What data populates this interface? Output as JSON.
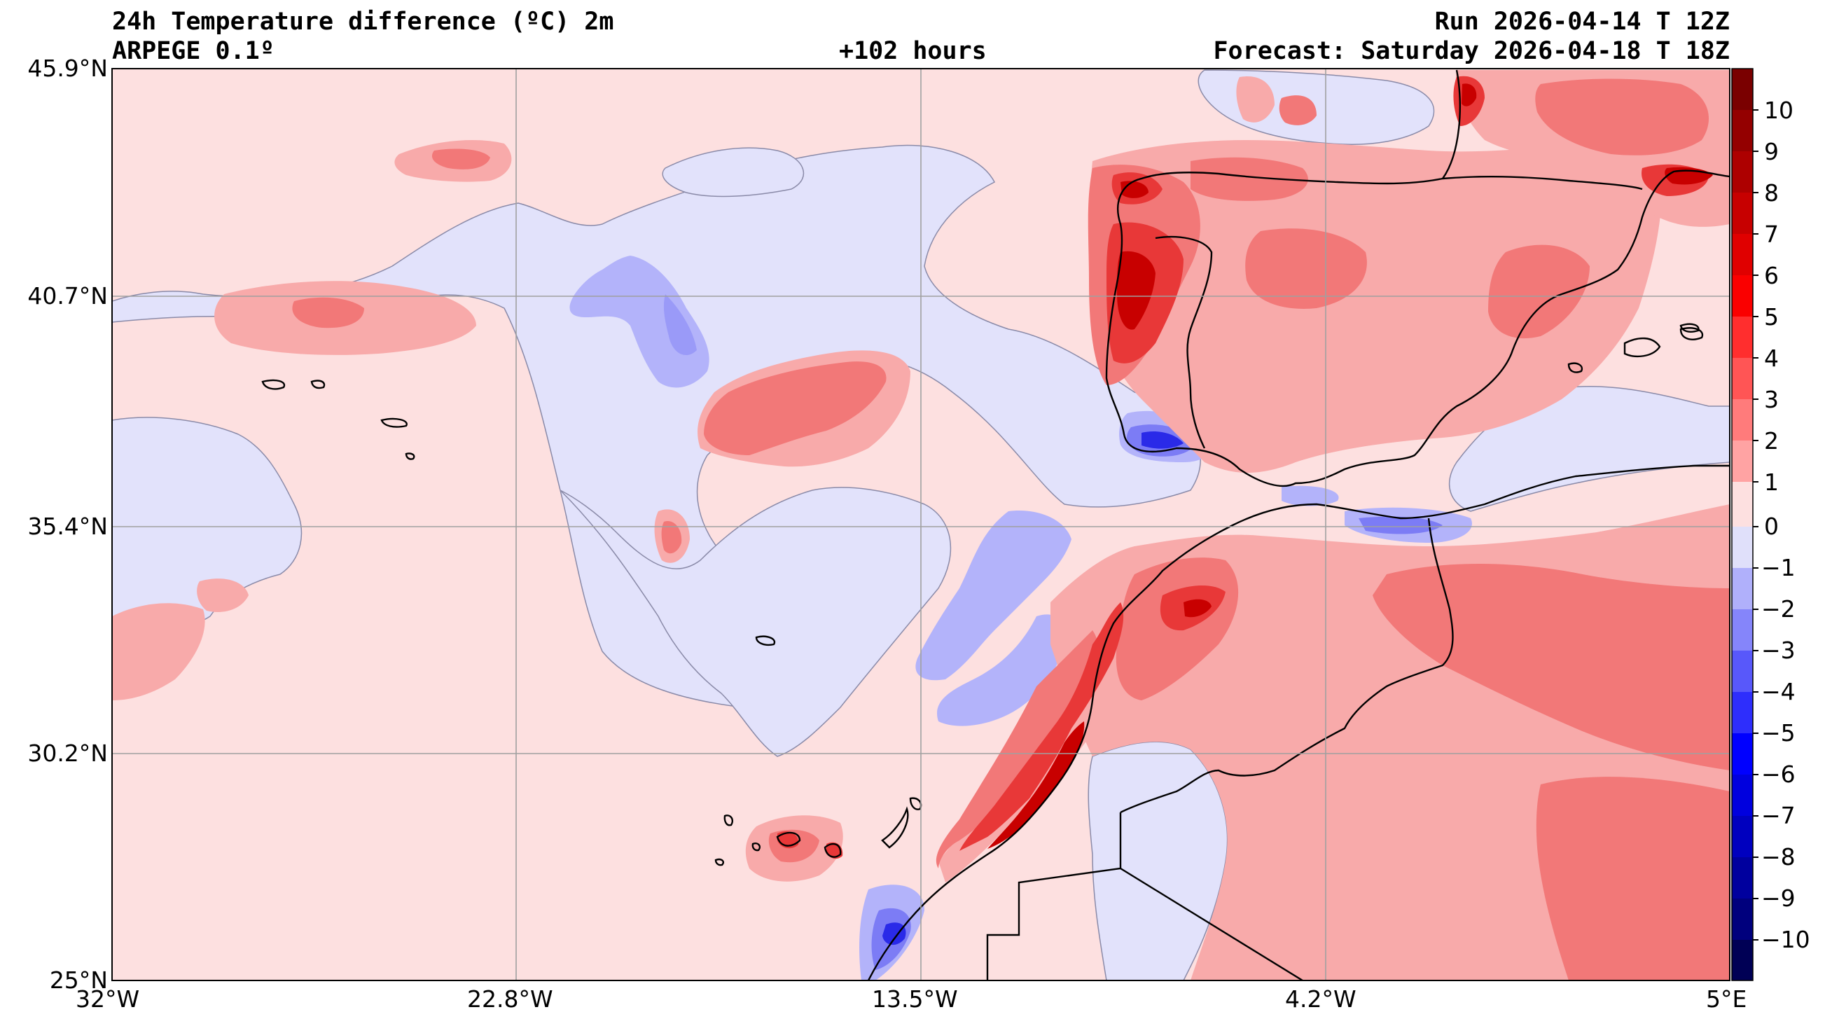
{
  "header": {
    "title": "24h Temperature difference (ºC) 2m",
    "model": "ARPEGE 0.1º",
    "lead_time": "+102 hours",
    "run": "Run 2026-04-14 T 12Z",
    "forecast": "Forecast: Saturday 2026-04-18 T 18Z"
  },
  "axes": {
    "lat_labels": [
      "45.9°N",
      "40.7°N",
      "35.4°N",
      "30.2°N",
      "25°N"
    ],
    "lon_labels": [
      "32°W",
      "22.8°W",
      "13.5°W",
      "4.2°W",
      "5°E"
    ]
  },
  "colorbar": {
    "labels": [
      "10",
      "9",
      "8",
      "7",
      "6",
      "5",
      "4",
      "3",
      "2",
      "1",
      "0",
      "−1",
      "−2",
      "−3",
      "−4",
      "−5",
      "−6",
      "−7",
      "−8",
      "−9",
      "−10"
    ],
    "colors": [
      "#7a0000",
      "#940000",
      "#ad0000",
      "#c70000",
      "#e00000",
      "#fa0000",
      "#ff2e2e",
      "#ff5555",
      "#ff7b7b",
      "#ffa3a3",
      "#fde0e0",
      "#e0e0fa",
      "#b0b0fb",
      "#8585fa",
      "#5858fa",
      "#2e2efc",
      "#0000ff",
      "#0000de",
      "#0000bf",
      "#00009e",
      "#00007d",
      "#000055"
    ]
  },
  "colors": {
    "sea_base": "#e2e2fb",
    "warm_base": "#fde0e0",
    "light_red": "#f8aaaa",
    "mid_red": "#f27878",
    "strong_red": "#e83838",
    "dark_red": "#c80000",
    "light_blue": "#b3b3fa",
    "mid_blue": "#7c7cf5",
    "dark_blue": "#2a2ae8",
    "coastline": "#000000",
    "grid": "#a0a0a0"
  }
}
